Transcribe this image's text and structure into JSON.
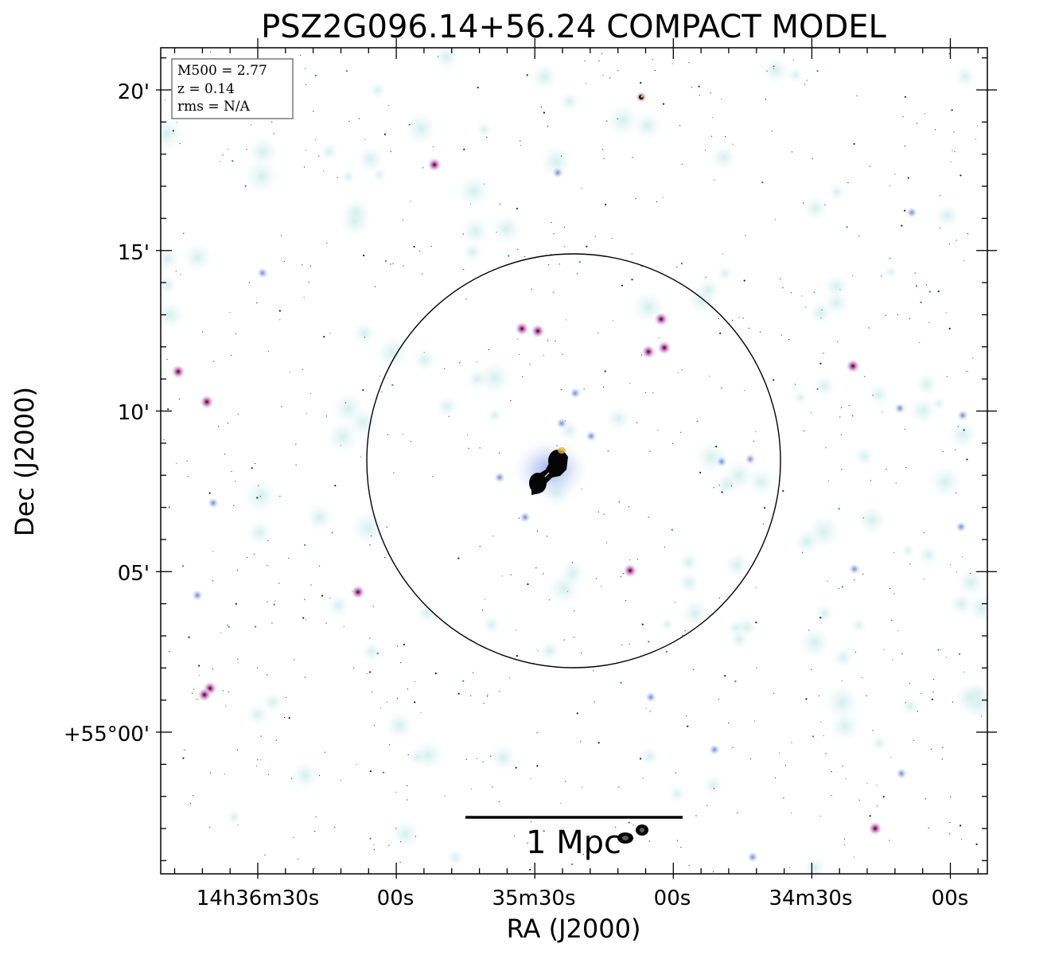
{
  "title": "PSZ2G096.14+56.24 COMPACT MODEL",
  "xlabel": "RA (J2000)",
  "ylabel": "Dec (J2000)",
  "x_ticks": [
    "14h36m30s",
    "00s",
    "35m30s",
    "00s",
    "34m30s",
    "00s"
  ],
  "y_ticks": [
    "20'",
    "15'",
    "10'",
    "05'",
    "+55°00'"
  ],
  "info_box": [
    "M500 = 2.77",
    "z = 0.14",
    "rms = N/A"
  ],
  "scale_bar_label": "1 Mpc",
  "colors": {
    "frame": "#000000",
    "faint_emission": "#cfeeee",
    "source_blue": "#9db0e6",
    "source_pink": "#d06aa6",
    "core": "#000000"
  }
}
